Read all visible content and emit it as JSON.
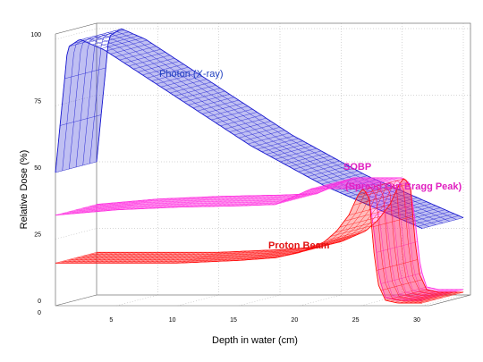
{
  "chart_data": {
    "type": "line",
    "style": "3d-ribbon",
    "xlabel": "Depth in water (cm)",
    "ylabel": "Relative Dose (%)",
    "xlim": [
      0,
      30
    ],
    "ylim": [
      0,
      100
    ],
    "x_ticks": [
      "0",
      "5",
      "10",
      "15",
      "20",
      "25",
      "30"
    ],
    "y_ticks": [
      "0",
      "25",
      "50",
      "75",
      "100"
    ],
    "grid": true,
    "annotations": [
      {
        "text": "Photon (X-ray)",
        "color": "#1f3fbf",
        "series": "photon"
      },
      {
        "text": "SOBP",
        "color": "#e020c0",
        "series": "sobp"
      },
      {
        "text": "(Spread Out Bragg Peak)",
        "color": "#e020c0",
        "series": "sobp"
      },
      {
        "text": "Proton Beam",
        "color": "#e01010",
        "series": "proton"
      }
    ],
    "series": [
      {
        "id": "photon",
        "color": "#1a1ad0",
        "points": [
          [
            0,
            50
          ],
          [
            1,
            97
          ],
          [
            2,
            100
          ],
          [
            4,
            96
          ],
          [
            6,
            90
          ],
          [
            8,
            84
          ],
          [
            10,
            78
          ],
          [
            12,
            72
          ],
          [
            14,
            66
          ],
          [
            16,
            60
          ],
          [
            18,
            55
          ],
          [
            20,
            50
          ],
          [
            22,
            45
          ],
          [
            24,
            41
          ],
          [
            26,
            37
          ],
          [
            28,
            33
          ],
          [
            30,
            29
          ]
        ]
      },
      {
        "id": "sobp",
        "color": "#ff30e0",
        "points": [
          [
            0,
            34
          ],
          [
            5,
            36
          ],
          [
            10,
            37
          ],
          [
            15,
            37.5
          ],
          [
            18,
            38
          ],
          [
            20,
            42
          ],
          [
            21,
            44
          ],
          [
            22,
            44
          ],
          [
            24,
            44
          ],
          [
            25,
            44
          ],
          [
            25.6,
            42
          ],
          [
            26,
            30
          ],
          [
            26.5,
            10
          ],
          [
            27,
            3
          ],
          [
            28,
            2
          ],
          [
            30,
            2
          ]
        ]
      },
      {
        "id": "proton",
        "color": "#ff1010",
        "points": [
          [
            0,
            16
          ],
          [
            5,
            16
          ],
          [
            10,
            16
          ],
          [
            15,
            17
          ],
          [
            18,
            18
          ],
          [
            20,
            20
          ],
          [
            22,
            24
          ],
          [
            23,
            28
          ],
          [
            24,
            34
          ],
          [
            24.8,
            42
          ],
          [
            25.2,
            44
          ],
          [
            25.7,
            40
          ],
          [
            26,
            22
          ],
          [
            26.4,
            8
          ],
          [
            27,
            2
          ],
          [
            28,
            1
          ],
          [
            30,
            1
          ]
        ]
      }
    ]
  }
}
